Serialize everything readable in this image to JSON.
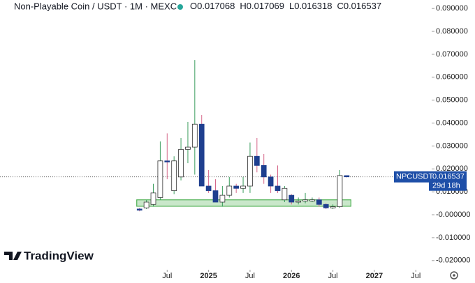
{
  "chart_data": {
    "type": "candlestick",
    "title": "Non-Playable Coin / USDT · 1M · MEXC",
    "ohlc_legend": [
      {
        "label": "O",
        "value": 0.017068
      },
      {
        "label": "H",
        "value": 0.017069
      },
      {
        "label": "L",
        "value": 0.016318
      },
      {
        "label": "C",
        "value": 0.016537
      }
    ],
    "x": [
      2,
      3,
      4,
      5,
      6,
      7,
      8,
      9,
      10,
      11,
      12,
      13,
      14,
      15,
      16,
      17,
      18,
      19,
      20,
      21,
      22,
      23,
      24,
      25,
      26,
      27,
      28,
      29,
      30,
      31,
      32
    ],
    "open": [
      0.0025,
      0.003,
      0.0045,
      0.0075,
      0.0235,
      0.0105,
      0.0165,
      0.0285,
      0.0295,
      0.0395,
      0.0125,
      0.0105,
      0.0055,
      0.0085,
      0.0125,
      0.0115,
      0.0125,
      0.0255,
      0.0215,
      0.0165,
      0.0125,
      0.0065,
      0.0085,
      0.0055,
      0.006,
      0.006,
      0.0065,
      0.0045,
      0.003,
      0.0035,
      0.017068
    ],
    "high": [
      0.003,
      0.0065,
      0.0135,
      0.032,
      0.0355,
      0.0255,
      0.0335,
      0.0405,
      0.0675,
      0.0435,
      0.0195,
      0.0155,
      0.0125,
      0.0165,
      0.0135,
      0.0165,
      0.0315,
      0.0335,
      0.0265,
      0.0175,
      0.0215,
      0.0125,
      0.009,
      0.0075,
      0.0095,
      0.0075,
      0.0075,
      0.005,
      0.0045,
      0.0195,
      0.017069
    ],
    "low": [
      0.0015,
      0.0025,
      0.0035,
      0.0065,
      0.0155,
      0.009,
      0.015,
      0.0225,
      0.0175,
      0.0125,
      0.0095,
      0.0055,
      0.0035,
      0.0075,
      0.0095,
      0.0095,
      0.0095,
      0.0185,
      0.0135,
      0.0095,
      0.0095,
      0.0055,
      0.0045,
      0.0045,
      0.005,
      0.0055,
      0.0035,
      0.0025,
      0.0025,
      0.003,
      0.016318
    ],
    "close": [
      0.002,
      0.0055,
      0.0095,
      0.0235,
      0.023,
      0.0235,
      0.0285,
      0.0295,
      0.0395,
      0.0125,
      0.0105,
      0.0055,
      0.0085,
      0.0125,
      0.0115,
      0.0125,
      0.0255,
      0.0215,
      0.0165,
      0.0125,
      0.0105,
      0.0115,
      0.0055,
      0.006,
      0.0065,
      0.0065,
      0.0045,
      0.003,
      0.0035,
      0.0171,
      0.016537
    ],
    "up_color": "#ffffff",
    "down_color": "#1e3f8f",
    "up_wick_color": "#3a9d5d",
    "down_wick_color": "#d6688a",
    "zone": {
      "x0": 2,
      "x1": 32.2,
      "y0": 0.0037,
      "y1": 0.0065,
      "color": "#4caf50"
    },
    "price_tag": {
      "symbol": "NPCUSDT",
      "value": 0.016537,
      "countdown": "29d 18h",
      "color": "#1e4fa8"
    },
    "xlim": [
      -18.2,
      44.3
    ],
    "xticks": [
      {
        "value": 6,
        "label": "Jul"
      },
      {
        "value": 12,
        "label": "2025"
      },
      {
        "value": 18,
        "label": "Jul"
      },
      {
        "value": 24,
        "label": "2026"
      },
      {
        "value": 30,
        "label": "Jul"
      },
      {
        "value": 36,
        "label": "2027"
      },
      {
        "value": 42,
        "label": "Jul"
      }
    ],
    "ylim": [
      -0.0234,
      0.0937
    ],
    "yticks": [
      {
        "value": 0.09,
        "label": "0.090000"
      },
      {
        "value": 0.08,
        "label": "0.080000"
      },
      {
        "value": 0.07,
        "label": "0.070000"
      },
      {
        "value": 0.06,
        "label": "0.060000"
      },
      {
        "value": 0.05,
        "label": "0.050000"
      },
      {
        "value": 0.04,
        "label": "0.040000"
      },
      {
        "value": 0.03,
        "label": "0.030000"
      },
      {
        "value": 0.02,
        "label": "0.020000"
      },
      {
        "value": 0.01,
        "label": "0.010000"
      },
      {
        "value": 0,
        "label": "-0.000000"
      },
      {
        "value": -0.01,
        "label": "-0.010000"
      },
      {
        "value": -0.02,
        "label": "-0.020000"
      }
    ],
    "brand": "TradingView"
  }
}
